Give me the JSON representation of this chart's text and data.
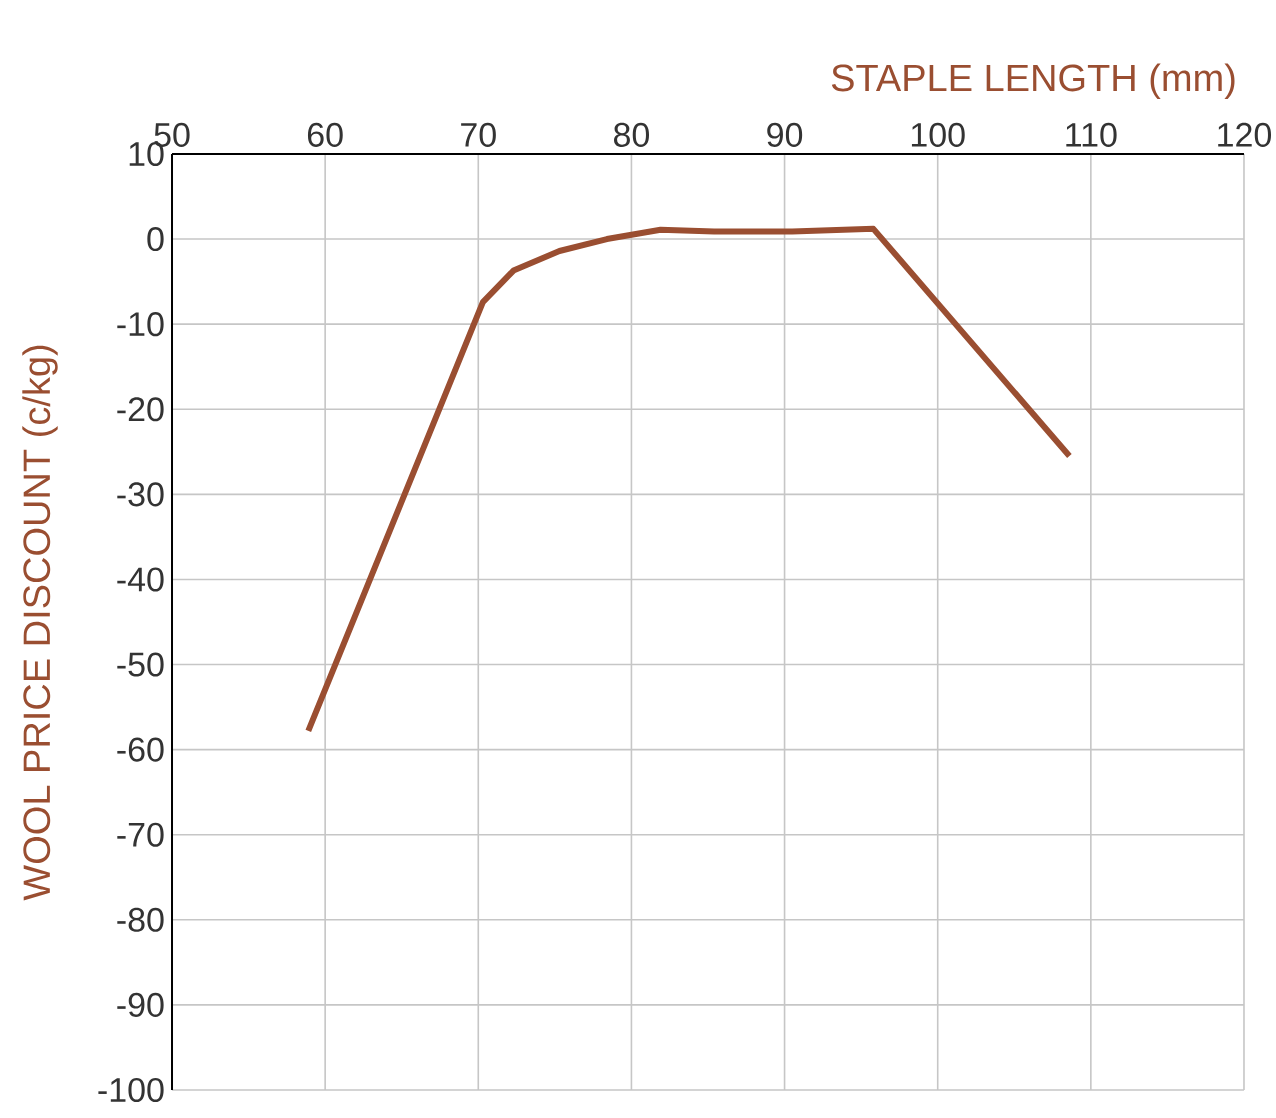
{
  "chart_data": {
    "type": "line",
    "xlabel": "STAPLE LENGTH (mm)",
    "ylabel": "WOOL PRICE DISCOUNT (c/kg)",
    "x": [
      58.9,
      70.3,
      72.3,
      75.3,
      78.4,
      81.9,
      85.4,
      90.5,
      95.8,
      108.6
    ],
    "series": [
      {
        "color": "#9a4e31",
        "values": [
          -57.8,
          -7.4,
          -3.7,
          -1.4,
          0.0,
          1.1,
          0.9,
          0.9,
          1.2,
          -25.5
        ]
      }
    ],
    "xlim": [
      50,
      120
    ],
    "ylim": [
      -100,
      10
    ],
    "xticks": [
      50,
      60,
      70,
      80,
      90,
      100,
      110,
      120
    ],
    "yticks": [
      10,
      0,
      -10,
      -20,
      -30,
      -40,
      -50,
      -60,
      -70,
      -80,
      -90,
      -100
    ],
    "grid": true,
    "marker": "none",
    "line_style": "solid"
  }
}
